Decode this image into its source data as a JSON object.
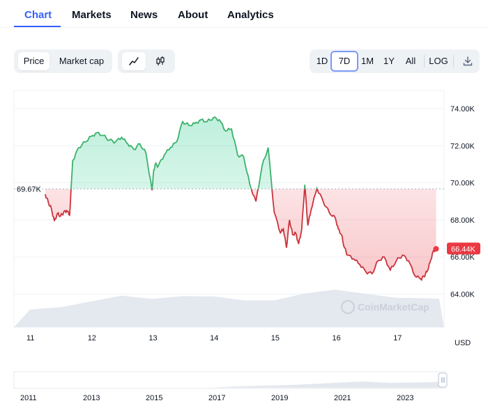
{
  "tabs": [
    {
      "label": "Chart",
      "active": true
    },
    {
      "label": "Markets",
      "active": false
    },
    {
      "label": "News",
      "active": false
    },
    {
      "label": "About",
      "active": false
    },
    {
      "label": "Analytics",
      "active": false
    }
  ],
  "toolbar": {
    "metric_buttons": [
      {
        "label": "Price",
        "selected": true
      },
      {
        "label": "Market cap",
        "selected": false
      }
    ],
    "chart_type_icons": [
      {
        "icon": "line-chart-icon",
        "selected": true
      },
      {
        "icon": "candlestick-icon",
        "selected": false
      }
    ],
    "ranges": [
      {
        "label": "1D",
        "selected": false
      },
      {
        "label": "7D",
        "selected": true
      },
      {
        "label": "1M",
        "selected": false
      },
      {
        "label": "1Y",
        "selected": false
      },
      {
        "label": "All",
        "selected": false
      }
    ],
    "log_label": "LOG",
    "download_icon": "download-icon"
  },
  "colors": {
    "accent": "#3861fb",
    "up": "#16c784",
    "up_line": "#3bb16a",
    "down": "#ea3943",
    "down_line": "#c9323b",
    "grid": "#eff2f5"
  },
  "chart_data": {
    "type": "line",
    "y_ticks": [
      "74.00K",
      "72.00K",
      "70.00K",
      "68.00K",
      "66.00K",
      "64.00K"
    ],
    "ylim": [
      63000,
      74800
    ],
    "x_ticks": [
      "11",
      "12",
      "13",
      "14",
      "15",
      "16",
      "17"
    ],
    "reference_value": 69670,
    "reference_label": "69.67K",
    "current_value": 66440,
    "current_label": "66.44K",
    "currency": "USD",
    "watermark": "CoinMarketCap",
    "series": [
      {
        "x": [
          11.25,
          11.3,
          11.35,
          11.4,
          11.45,
          11.5,
          11.55,
          11.6,
          11.65,
          11.7,
          11.8,
          11.9,
          12.0,
          12.1,
          12.2,
          12.3,
          12.4,
          12.5,
          12.6,
          12.7,
          12.8,
          12.9,
          13.0,
          13.02,
          13.05,
          13.1,
          13.2,
          13.3,
          13.4,
          13.5,
          13.6,
          13.7,
          13.8,
          13.9,
          14.0,
          14.1,
          14.2,
          14.3,
          14.4,
          14.5,
          14.6,
          14.7,
          14.8,
          14.9,
          15.0,
          15.1,
          15.15,
          15.2,
          15.25,
          15.3,
          15.35,
          15.4,
          15.45,
          15.5,
          15.55,
          15.6,
          15.7,
          15.8,
          15.9,
          16.0,
          16.05,
          16.1,
          16.15,
          16.2,
          16.3,
          16.4,
          16.5,
          16.6,
          16.7,
          16.8,
          16.9,
          17.0,
          17.1,
          17.2,
          17.3,
          17.4,
          17.45,
          17.5,
          17.55,
          17.6,
          17.65
        ],
        "values": [
          69380,
          68950,
          68600,
          67940,
          68350,
          68200,
          68400,
          68500,
          68250,
          71200,
          71900,
          72200,
          72500,
          72700,
          72550,
          72300,
          72200,
          72450,
          72100,
          71800,
          72100,
          71600,
          69600,
          70500,
          71000,
          70900,
          71500,
          71900,
          72200,
          73300,
          73100,
          73200,
          73400,
          73300,
          73500,
          73400,
          72800,
          72900,
          71500,
          71400,
          69900,
          69000,
          70900,
          71900,
          68400,
          67300,
          67500,
          66500,
          68000,
          67200,
          67300,
          66700,
          67500,
          69900,
          67700,
          68500,
          69700,
          69000,
          68400,
          68100,
          67500,
          67200,
          66500,
          66100,
          65900,
          65600,
          65200,
          65100,
          65800,
          66000,
          65300,
          65800,
          66100,
          65800,
          65000,
          64800,
          64950,
          65200,
          65700,
          66300,
          66440
        ]
      }
    ],
    "volume_x": [
      11.0,
      11.5,
      12.0,
      12.5,
      13.0,
      13.5,
      14.0,
      14.5,
      15.0,
      15.5,
      16.0,
      16.5,
      17.0,
      17.5,
      17.7
    ],
    "volume_values": [
      0.45,
      0.55,
      0.75,
      0.85,
      0.8,
      0.82,
      0.85,
      0.78,
      0.72,
      0.95,
      1.0,
      0.92,
      0.85,
      0.78,
      0.8
    ],
    "navigator": {
      "year_ticks": [
        "2011",
        "2013",
        "2015",
        "2017",
        "2019",
        "2021",
        "2023"
      ]
    }
  }
}
